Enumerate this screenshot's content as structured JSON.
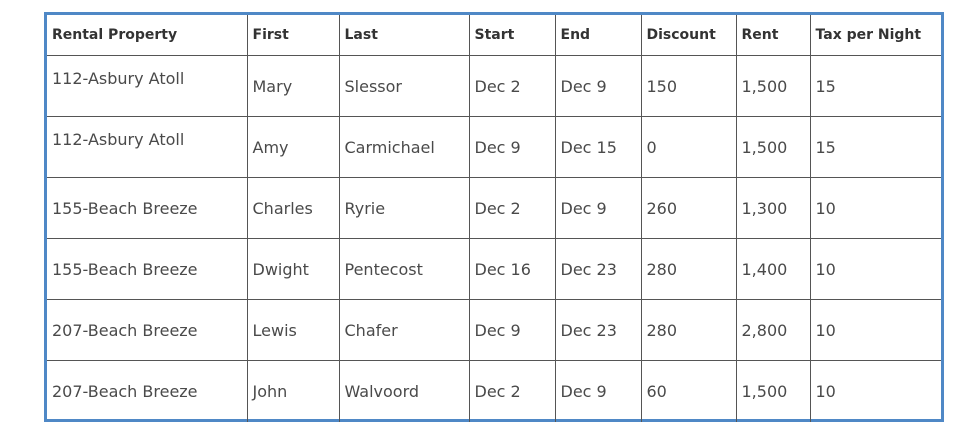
{
  "table": {
    "headers": [
      "Rental Property",
      "First",
      "Last",
      "Start",
      "End",
      "Discount",
      "Rent",
      "Tax per Night"
    ],
    "rows": [
      [
        "112-Asbury Atoll",
        "Mary",
        "Slessor",
        "Dec 2",
        "Dec 9",
        "150",
        "1,500",
        "15"
      ],
      [
        "112-Asbury Atoll",
        "Amy",
        "Carmichael",
        "Dec 9",
        "Dec 15",
        "0",
        "1,500",
        "15"
      ],
      [
        "155-Beach Breeze",
        "Charles",
        "Ryrie",
        "Dec 2",
        "Dec 9",
        "260",
        "1,300",
        "10"
      ],
      [
        "155-Beach Breeze",
        "Dwight",
        "Pentecost",
        "Dec 16",
        "Dec 23",
        "280",
        "1,400",
        "10"
      ],
      [
        "207-Beach Breeze",
        "Lewis",
        "Chafer",
        "Dec 9",
        "Dec 23",
        "280",
        "2,800",
        "10"
      ],
      [
        "207-Beach Breeze",
        "John",
        "Walvoord",
        "Dec 2",
        "Dec 9",
        "60",
        "1,500",
        "10"
      ]
    ]
  },
  "colors": {
    "frame_border": "#4f88c6",
    "cell_border": "#555555",
    "text": "#4a4a4a"
  }
}
